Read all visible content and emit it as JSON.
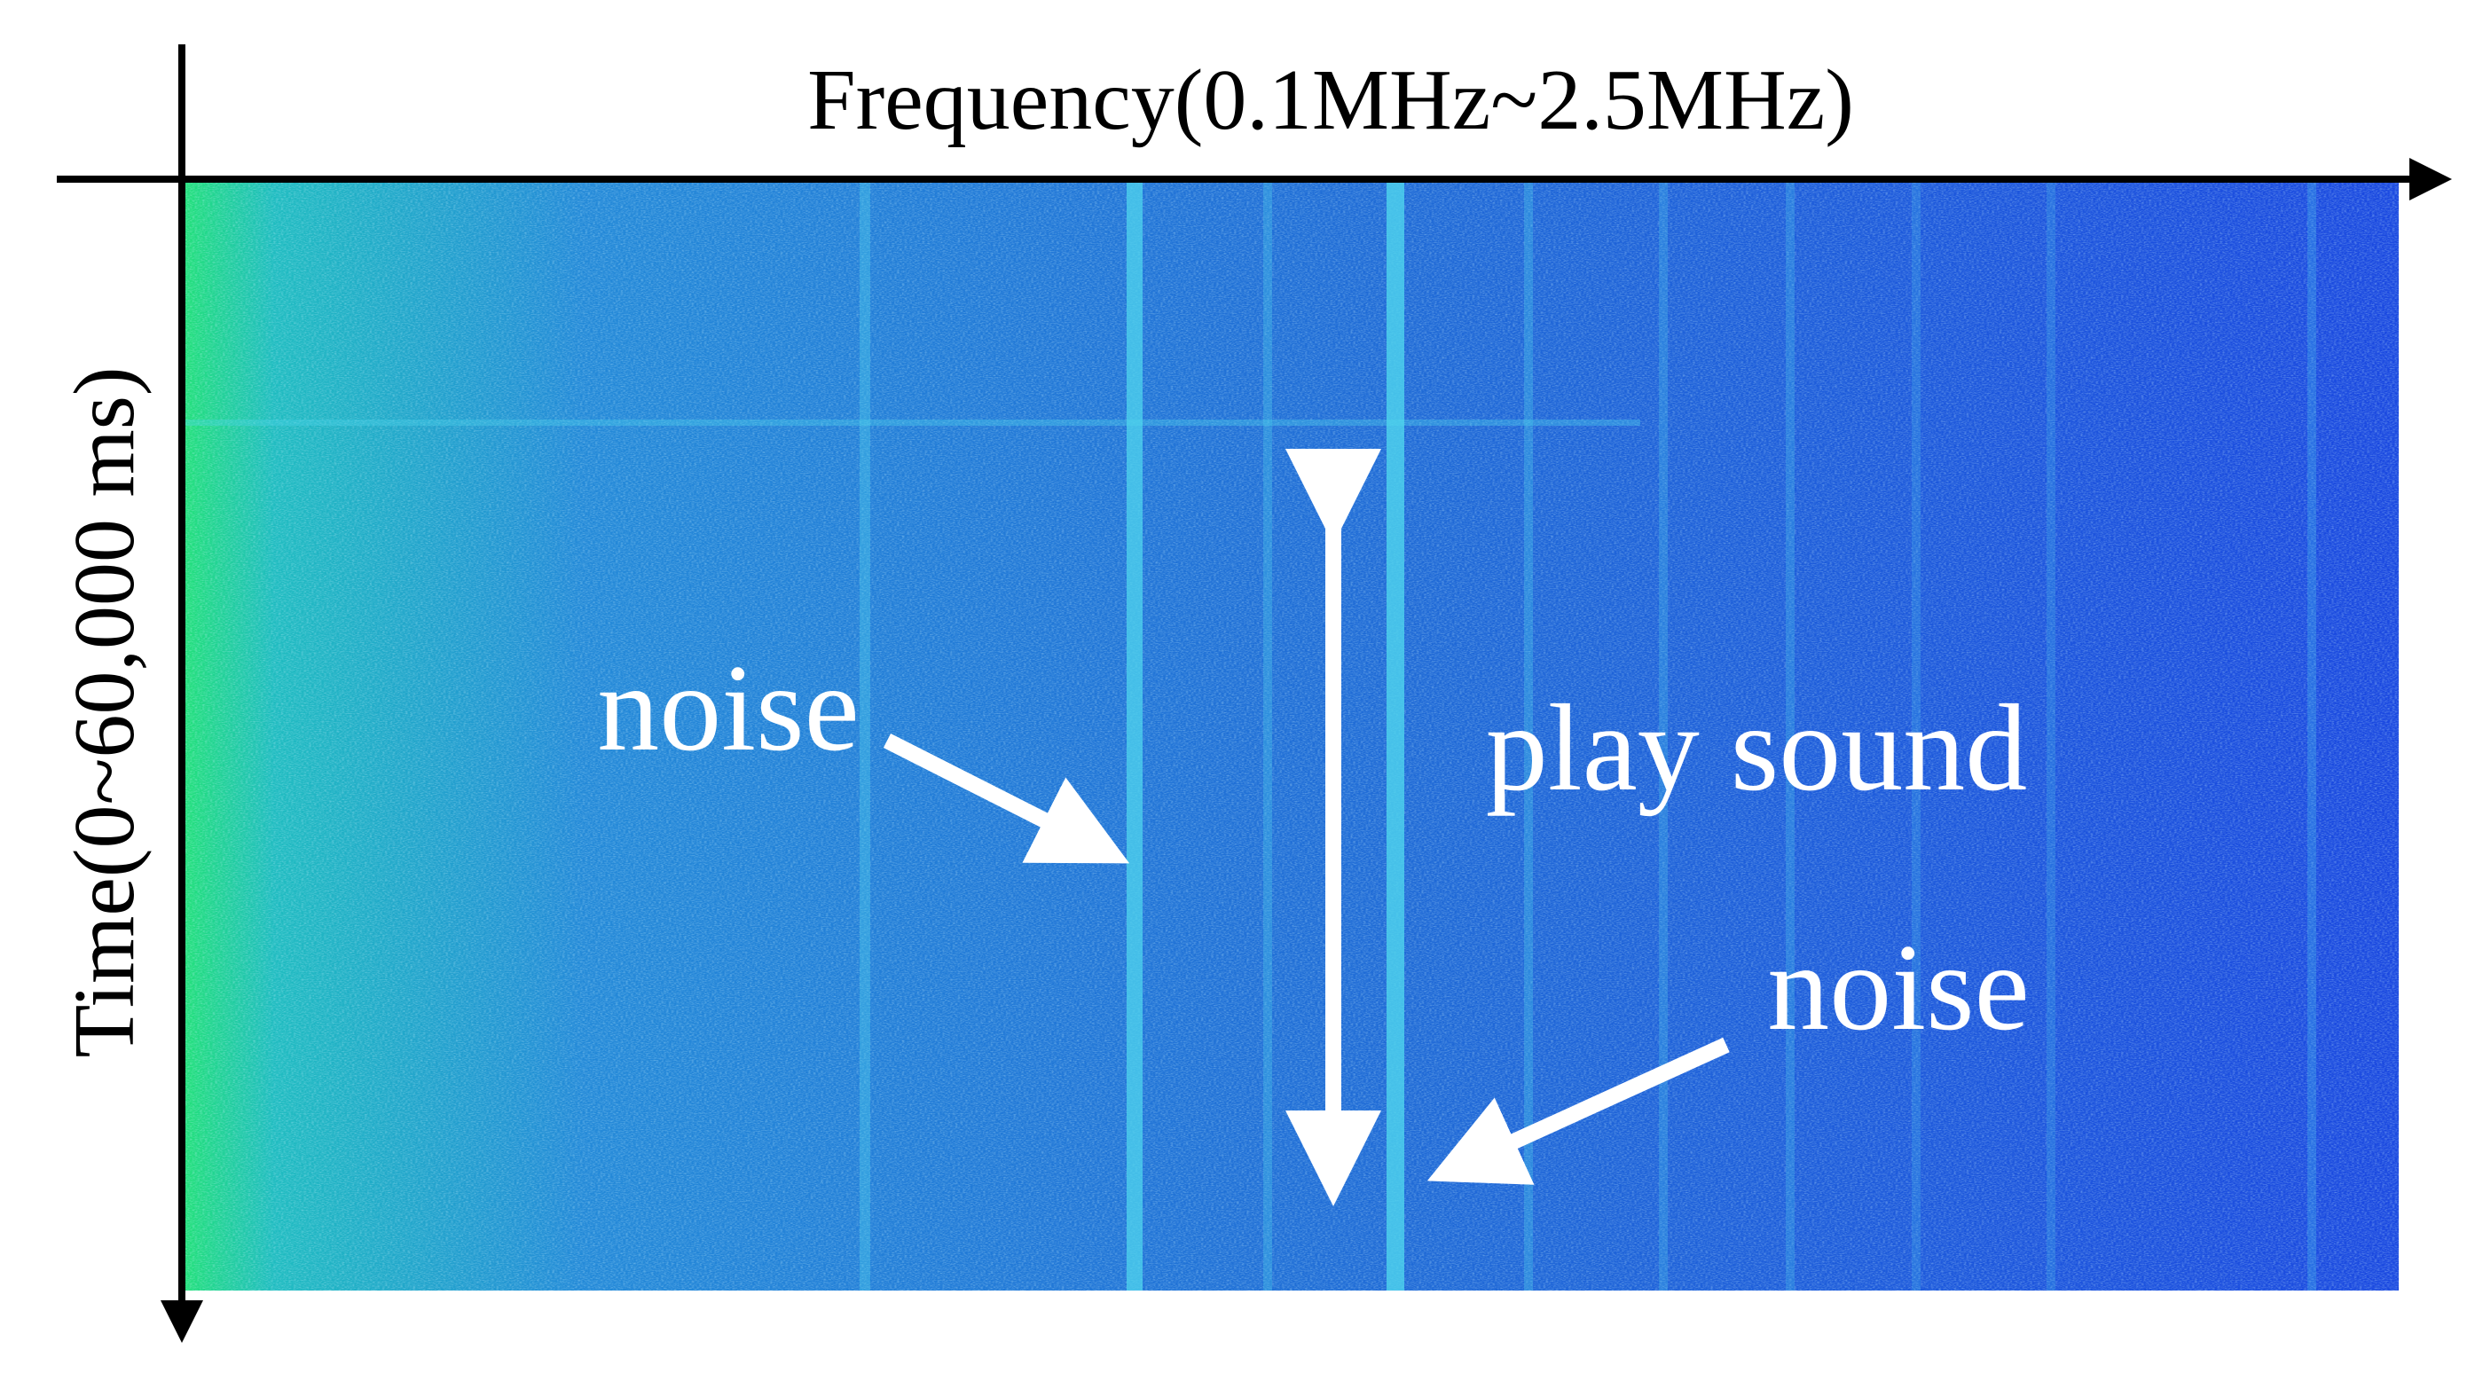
{
  "axes": {
    "x_label": "Frequency(0.1MHz~2.5MHz)",
    "y_label": "Time(0~60,000 ms)"
  },
  "annotations": {
    "noise_left": "noise",
    "play_sound": "play sound",
    "noise_right": "noise"
  }
}
